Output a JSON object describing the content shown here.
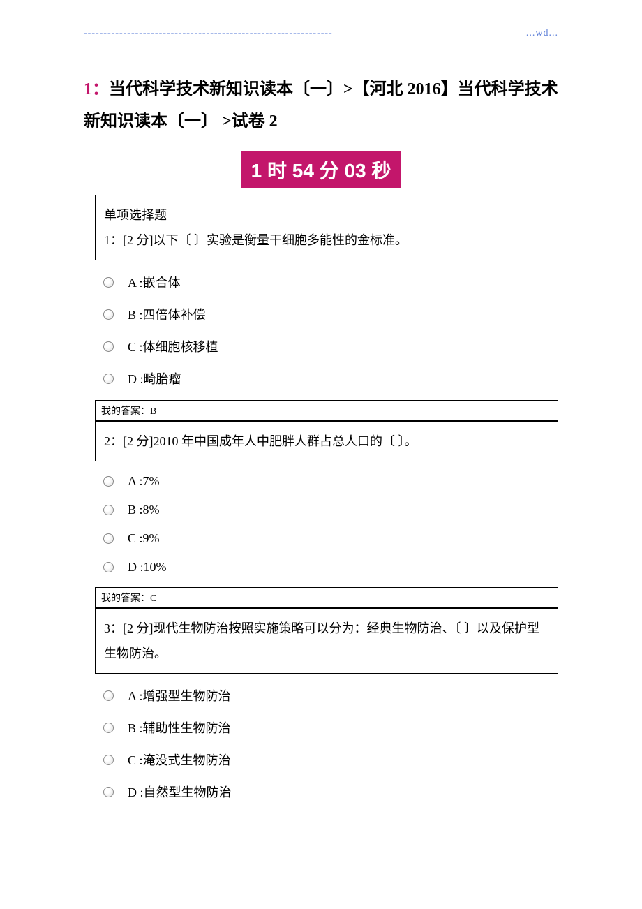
{
  "header": {
    "dashes": "---------------------------------------------------------------",
    "wd": "...wd..."
  },
  "title": {
    "line1_prefix": "1：",
    "line1": "当代科学技术新知识读本〔一〕>【河北 2016】当代科学技术新知识读本〔一〕 >试卷 2"
  },
  "timer": "1 时 54 分 03 秒",
  "section_label": "单项选择题",
  "questions": [
    {
      "stem": "1：[2 分]以下〔 〕实验是衡量干细胞多能性的金标准。",
      "options": [
        "A :嵌合体",
        "B :四倍体补偿",
        "C :体细胞核移植",
        "D :畸胎瘤"
      ],
      "answer": "我的答案：B"
    },
    {
      "stem": "2：[2 分]2010 年中国成年人中肥胖人群占总人口的〔 〕。",
      "options": [
        "A :7%",
        "B :8%",
        "C :9%",
        "D :10%"
      ],
      "answer": "我的答案：C"
    },
    {
      "stem": "3：[2 分]现代生物防治按照实施策略可以分为：经典生物防治、〔 〕以及保护型生物防治。",
      "options": [
        "A :增强型生物防治",
        "B :辅助性生物防治",
        "C :淹没式生物防治",
        "D :自然型生物防治"
      ],
      "answer": ""
    }
  ]
}
